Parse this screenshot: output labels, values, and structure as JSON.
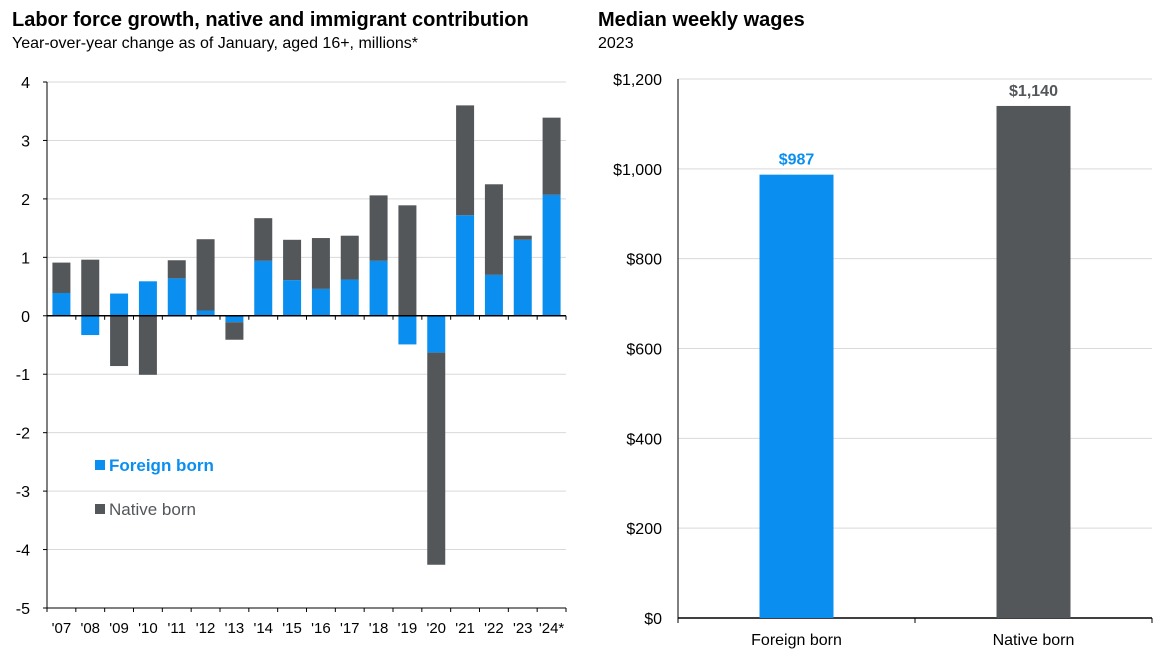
{
  "colors": {
    "foreign": "#0A8FF0",
    "native": "#53575A",
    "grid": "#D9D9D9",
    "axis": "#000000"
  },
  "chart_data": [
    {
      "type": "bar",
      "stacked": true,
      "title": "Labor force growth, native and immigrant contribution",
      "subtitle": "Year-over-year change as of January, aged 16+, millions*",
      "categories": [
        "'07",
        "'08",
        "'09",
        "'10",
        "'11",
        "'12",
        "'13",
        "'14",
        "'15",
        "'16",
        "'17",
        "'18",
        "'19",
        "'20",
        "'21",
        "'22",
        "'23",
        "'24*"
      ],
      "series": [
        {
          "name": "Foreign born",
          "values": [
            0.39,
            -0.33,
            0.38,
            0.59,
            0.64,
            0.09,
            -0.11,
            0.94,
            0.61,
            0.46,
            0.62,
            0.94,
            -0.49,
            -0.63,
            1.72,
            0.7,
            1.3,
            2.07
          ]
        },
        {
          "name": "Native born",
          "values": [
            0.52,
            0.96,
            -0.86,
            -1.01,
            0.31,
            1.22,
            -0.3,
            0.73,
            0.69,
            0.87,
            0.75,
            1.12,
            1.89,
            -3.63,
            1.88,
            1.55,
            0.07,
            1.32
          ]
        }
      ],
      "ylim": [
        -5,
        4
      ],
      "yticks": [
        "4",
        "3",
        "2",
        "1",
        "0",
        "-1",
        "-2",
        "-3",
        "-4",
        "-5"
      ],
      "grid": true,
      "legend_placement": "bottom-left inside plot"
    },
    {
      "type": "bar",
      "title": "Median weekly wages",
      "subtitle": "2023",
      "categories": [
        "Foreign born",
        "Native born"
      ],
      "values": [
        987,
        1140
      ],
      "data_labels": [
        "$987",
        "$1,140"
      ],
      "ylim": [
        0,
        1200
      ],
      "yticks": [
        "$1,200",
        "$1,000",
        "$800",
        "$600",
        "$400",
        "$200",
        "$0"
      ],
      "grid": true
    }
  ]
}
